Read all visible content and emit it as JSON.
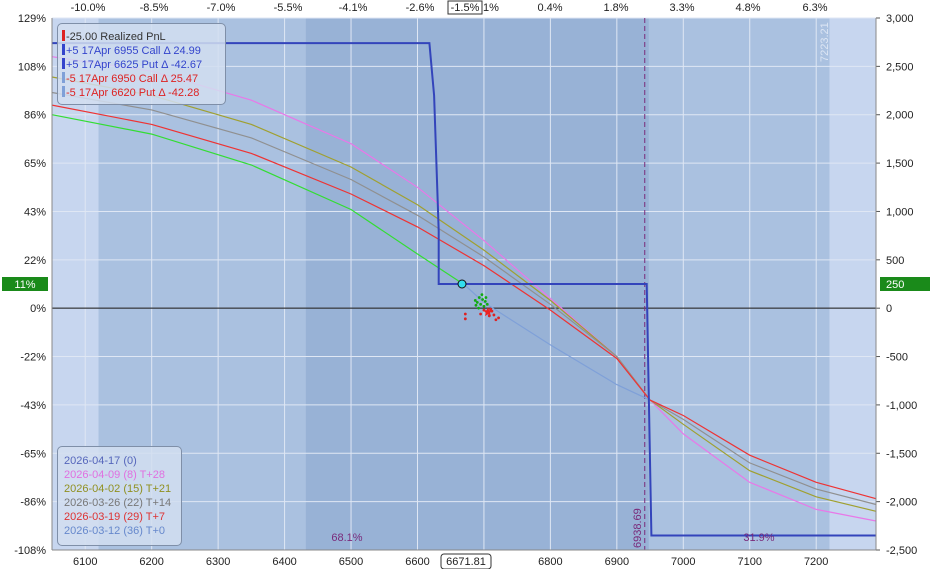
{
  "chart_data": {
    "type": "line",
    "x_range": [
      6050,
      7290
    ],
    "left_axis_range": [
      -108,
      129
    ],
    "right_axis_range": [
      -2500,
      3000
    ],
    "x_ticks": [
      6100,
      6200,
      6300,
      6400,
      6500,
      6600,
      6700,
      6800,
      6900,
      7000,
      7100,
      7200
    ],
    "x_tick_labels": [
      "6100",
      "6200",
      "6300",
      "6400",
      "6500",
      "6600",
      "",
      "6800",
      "6900",
      "7000",
      "7100",
      "7200"
    ],
    "x_tick_partial": "0",
    "top_tick_labels": [
      "-10.0%",
      "-8.5%",
      "-7.0%",
      "-5.5%",
      "-4.1%",
      "-2.6%",
      "-1.5%",
      "1%",
      "0.4%",
      "1.8%",
      "3.3%",
      "4.8%",
      "6.3%"
    ],
    "left_tick_labels": [
      "129%",
      "108%",
      "86%",
      "65%",
      "43%",
      "22%",
      "0%",
      "-22%",
      "-43%",
      "-65%",
      "-86%",
      "-108%"
    ],
    "right_tick_labels": [
      "3,000",
      "2,500",
      "2,000",
      "1,500",
      "1,000",
      "500",
      "0",
      "-500",
      "-1,000",
      "-1,500",
      "-2,000",
      "-2,500"
    ],
    "left_marker": "11%",
    "right_marker": "250",
    "current_price_label": "6671.81",
    "current_pct_label": "-1.5%",
    "breakeven_label": "6938.69",
    "right_edge_label": "7223.21",
    "prob_left": "68.1%",
    "prob_right": "31.9%",
    "grid": true,
    "legend_position": "top-left",
    "expiry_payoff": [
      [
        6050,
        2740
      ],
      [
        6618,
        2740
      ],
      [
        6625,
        2200
      ],
      [
        6632,
        800
      ],
      [
        6632,
        250
      ],
      [
        6945,
        250
      ],
      [
        6952,
        -2350
      ],
      [
        7290,
        -2350
      ]
    ],
    "series": [
      {
        "name": "2026-04-09 (8) T+28",
        "color": "#e878e8",
        "points": [
          [
            6050,
            2600
          ],
          [
            6200,
            2450
          ],
          [
            6350,
            2150
          ],
          [
            6500,
            1700
          ],
          [
            6600,
            1250
          ],
          [
            6700,
            700
          ],
          [
            6800,
            100
          ],
          [
            6900,
            -500
          ],
          [
            6950,
            -950
          ],
          [
            7000,
            -1300
          ],
          [
            7100,
            -1800
          ],
          [
            7200,
            -2080
          ],
          [
            7290,
            -2200
          ]
        ]
      },
      {
        "name": "2026-04-02 (15) T+21",
        "color": "#a0a030",
        "points": [
          [
            6050,
            2390
          ],
          [
            6200,
            2200
          ],
          [
            6350,
            1900
          ],
          [
            6500,
            1460
          ],
          [
            6600,
            1070
          ],
          [
            6700,
            600
          ],
          [
            6800,
            80
          ],
          [
            6900,
            -500
          ],
          [
            6950,
            -950
          ],
          [
            7000,
            -1200
          ],
          [
            7100,
            -1680
          ],
          [
            7200,
            -1950
          ],
          [
            7290,
            -2100
          ]
        ]
      },
      {
        "name": "2026-03-26 (22) T+14",
        "color": "#909090",
        "points": [
          [
            6050,
            2230
          ],
          [
            6200,
            2050
          ],
          [
            6350,
            1760
          ],
          [
            6500,
            1330
          ],
          [
            6600,
            960
          ],
          [
            6700,
            530
          ],
          [
            6800,
            40
          ],
          [
            6900,
            -500
          ],
          [
            6950,
            -950
          ],
          [
            7000,
            -1150
          ],
          [
            7100,
            -1600
          ],
          [
            7200,
            -1870
          ],
          [
            7290,
            -2030
          ]
        ]
      },
      {
        "name": "2026-03-19 (29) T+7",
        "color": "#ee3333",
        "points": [
          [
            6050,
            2100
          ],
          [
            6200,
            1900
          ],
          [
            6350,
            1600
          ],
          [
            6500,
            1180
          ],
          [
            6600,
            840
          ],
          [
            6700,
            440
          ],
          [
            6800,
            -20
          ],
          [
            6900,
            -520
          ],
          [
            6950,
            -950
          ],
          [
            7000,
            -1110
          ],
          [
            7100,
            -1520
          ],
          [
            7200,
            -1800
          ],
          [
            7290,
            -1970
          ]
        ]
      },
      {
        "name": "2026-03-12 (36) T+0",
        "color": "#33dd33",
        "points": [
          [
            6050,
            2000
          ],
          [
            6200,
            1800
          ],
          [
            6350,
            1480
          ],
          [
            6500,
            1020
          ],
          [
            6600,
            560
          ],
          [
            6671,
            240
          ]
        ]
      },
      {
        "name": "2026-03-12 (36) T+0 (projected)",
        "color": "#7fa0d8",
        "points": [
          [
            6671,
            240
          ],
          [
            6700,
            60
          ],
          [
            6800,
            -380
          ],
          [
            6900,
            -790
          ],
          [
            6950,
            -950
          ]
        ]
      }
    ],
    "scatter_green": [
      [
        6687,
        80
      ],
      [
        6690,
        60
      ],
      [
        6693,
        110
      ],
      [
        6695,
        40
      ],
      [
        6698,
        90
      ],
      [
        6700,
        20
      ],
      [
        6702,
        70
      ],
      [
        6692,
        0
      ],
      [
        6688,
        30
      ],
      [
        6697,
        140
      ],
      [
        6705,
        40
      ],
      [
        6703,
        110
      ]
    ],
    "scatter_red": [
      [
        6695,
        -60
      ],
      [
        6700,
        -20
      ],
      [
        6705,
        -50
      ],
      [
        6708,
        -80
      ],
      [
        6712,
        -30
      ],
      [
        6715,
        -70
      ],
      [
        6718,
        -120
      ],
      [
        6672,
        -60
      ],
      [
        6672,
        -110
      ],
      [
        6722,
        -100
      ],
      [
        6710,
        -10
      ]
    ],
    "current_point": [
      6667,
      250
    ],
    "star": [
      6706,
      -40
    ]
  },
  "legend": [
    {
      "text": "-25.00 Realized PnL",
      "color": "#333333",
      "sw": "#dd2222"
    },
    {
      "text": "+5 17Apr 6955 Call Δ   24.99",
      "color": "#3344cc",
      "sw": "#3344cc"
    },
    {
      "text": "+5 17Apr 6625 Put Δ   -42.67",
      "color": "#3344cc",
      "sw": "#3344cc"
    },
    {
      "text": "-5 17Apr 6950 Call Δ   25.47",
      "color": "#dd2222",
      "sw": "#7fa0d8"
    },
    {
      "text": "-5 17Apr 6620 Put Δ  -42.28",
      "color": "#dd2222",
      "sw": "#7fa0d8"
    }
  ],
  "tplus": [
    {
      "text": "2026-04-17 (0)",
      "color": "#5566bb"
    },
    {
      "text": "2026-04-09 (8) T+28",
      "color": "#e070e0"
    },
    {
      "text": "2026-04-02 (15) T+21",
      "color": "#909020"
    },
    {
      "text": "2026-03-26 (22) T+14",
      "color": "#777777"
    },
    {
      "text": "2026-03-19 (29) T+7",
      "color": "#dd3333"
    },
    {
      "text": "2026-03-12 (36) T+0",
      "color": "#6688cc"
    }
  ]
}
